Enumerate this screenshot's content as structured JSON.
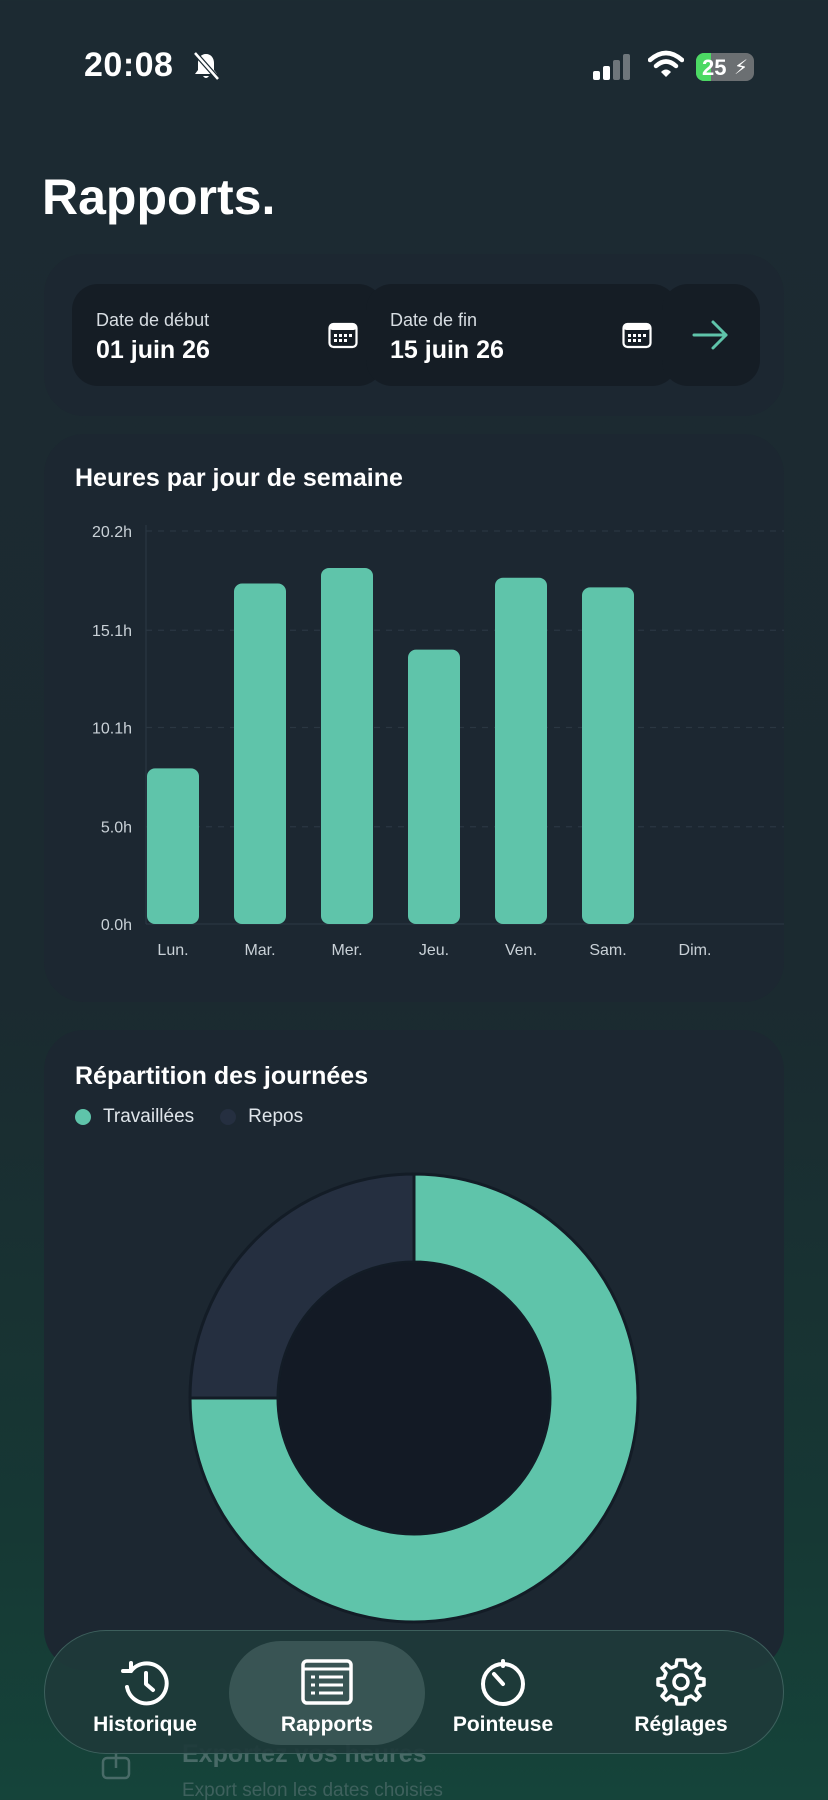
{
  "status_bar": {
    "time": "20:08",
    "battery": "25",
    "battery_level": 0.25
  },
  "page": {
    "title": "Rapports."
  },
  "date_range": {
    "start_label": "Date de début",
    "start_value": "01 juin 26",
    "end_label": "Date de fin",
    "end_value": "15 juin 26"
  },
  "colors": {
    "accent": "#5fc4aa",
    "rest": "#252f40",
    "card": "#1c2731",
    "field": "#151d25"
  },
  "weekday_chart": {
    "title": "Heures par jour de semaine"
  },
  "distribution_chart": {
    "title": "Répartition des journées",
    "legend_worked": "Travaillées",
    "legend_rest": "Repos"
  },
  "chart_data": [
    {
      "type": "bar",
      "title": "Heures par jour de semaine",
      "categories": [
        "Lun.",
        "Mar.",
        "Mer.",
        "Jeu.",
        "Ven.",
        "Sam.",
        "Dim."
      ],
      "values": [
        8.0,
        17.5,
        18.3,
        14.1,
        17.8,
        17.3,
        0
      ],
      "ylim": [
        0,
        20.2
      ],
      "y_ticks": [
        "0.0h",
        "5.0h",
        "10.1h",
        "15.1h",
        "20.2h"
      ],
      "y_tick_values": [
        0,
        5.0,
        10.1,
        15.1,
        20.2
      ],
      "grid": true,
      "color": "#5fc4aa"
    },
    {
      "type": "pie",
      "title": "Répartition des journées",
      "labels": [
        "Travaillées",
        "Repos"
      ],
      "values": [
        6,
        2
      ],
      "colors": [
        "#5fc4aa",
        "#252f40"
      ],
      "legend_position": "top-left",
      "donut": true
    }
  ],
  "faded_section": {
    "title": "Exportez vos heures",
    "subtitle": "Export selon les dates choisies"
  },
  "tab_bar": {
    "tabs": [
      {
        "label": "Historique",
        "icon": "history-icon"
      },
      {
        "label": "Rapports",
        "icon": "report-icon",
        "active": true
      },
      {
        "label": "Pointeuse",
        "icon": "timer-icon"
      },
      {
        "label": "Réglages",
        "icon": "gear-icon"
      }
    ]
  }
}
